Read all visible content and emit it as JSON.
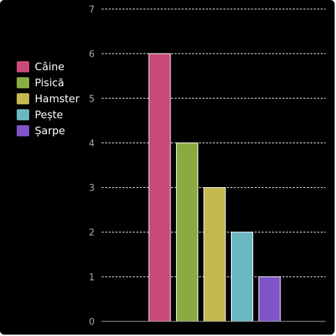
{
  "chart_data": {
    "type": "bar",
    "categories": [
      "Câine",
      "Pisică",
      "Hamster",
      "Pește",
      "Șarpe"
    ],
    "values": [
      6,
      4,
      3,
      2,
      1
    ],
    "colors": [
      "#c94a7a",
      "#8aab42",
      "#c4b84f",
      "#6ab8c4",
      "#7f55c8"
    ],
    "ylim": [
      0,
      7
    ],
    "yticks": [
      "0",
      "1",
      "2",
      "3",
      "4",
      "5",
      "6",
      "7"
    ],
    "grid": true,
    "legend": {
      "position": "left",
      "items": [
        "Câine",
        "Pisică",
        "Hamster",
        "Pește",
        "Șarpe"
      ]
    }
  }
}
